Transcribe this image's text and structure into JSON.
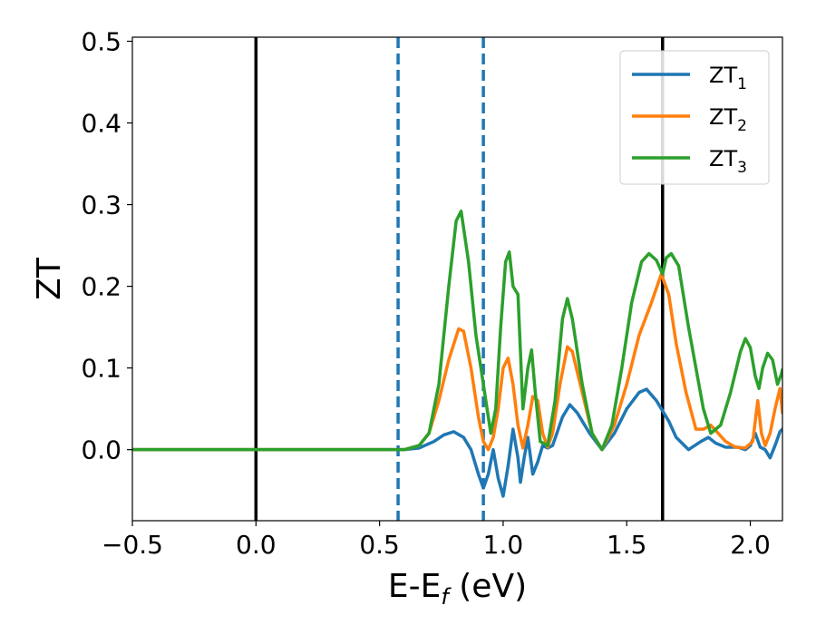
{
  "chart_data": {
    "type": "line",
    "xlabel": "E-E",
    "xlabel_sub": "f",
    "xlabel_unit": " (eV)",
    "ylabel": "ZT",
    "xlim": [
      -0.5,
      2.13
    ],
    "ylim": [
      -0.087,
      0.505
    ],
    "grid": false,
    "legend_position": "top-right",
    "x_ticks": [
      {
        "value": -0.5,
        "label": "−0.5"
      },
      {
        "value": 0.0,
        "label": "0.0"
      },
      {
        "value": 0.5,
        "label": "0.5"
      },
      {
        "value": 1.0,
        "label": "1.0"
      },
      {
        "value": 1.5,
        "label": "1.5"
      },
      {
        "value": 2.0,
        "label": "2.0"
      }
    ],
    "y_ticks": [
      {
        "value": 0.0,
        "label": "0.0"
      },
      {
        "value": 0.1,
        "label": "0.1"
      },
      {
        "value": 0.2,
        "label": "0.2"
      },
      {
        "value": 0.3,
        "label": "0.3"
      },
      {
        "value": 0.4,
        "label": "0.4"
      },
      {
        "value": 0.5,
        "label": "0.5"
      }
    ],
    "vertical_lines": [
      {
        "x": 0.0,
        "color": "#000000",
        "style": "solid"
      },
      {
        "x": 0.575,
        "color": "#1f77b4",
        "style": "dashed"
      },
      {
        "x": 0.92,
        "color": "#1f77b4",
        "style": "dashed"
      },
      {
        "x": 1.645,
        "color": "#000000",
        "style": "solid"
      }
    ],
    "series": [
      {
        "name": "ZT",
        "name_sub": "1",
        "color": "#1f77b4",
        "points": [
          [
            -0.5,
            0
          ],
          [
            0.4,
            0
          ],
          [
            0.6,
            0
          ],
          [
            0.66,
            0.002
          ],
          [
            0.72,
            0.01
          ],
          [
            0.76,
            0.018
          ],
          [
            0.8,
            0.022
          ],
          [
            0.84,
            0.015
          ],
          [
            0.87,
            0.0
          ],
          [
            0.9,
            -0.03
          ],
          [
            0.92,
            -0.047
          ],
          [
            0.94,
            -0.03
          ],
          [
            0.96,
            0.0
          ],
          [
            0.98,
            -0.035
          ],
          [
            1.0,
            -0.057
          ],
          [
            1.02,
            -0.02
          ],
          [
            1.04,
            0.025
          ],
          [
            1.06,
            -0.01
          ],
          [
            1.07,
            -0.04
          ],
          [
            1.085,
            -0.01
          ],
          [
            1.1,
            0.015
          ],
          [
            1.12,
            -0.03
          ],
          [
            1.14,
            -0.015
          ],
          [
            1.16,
            0.005
          ],
          [
            1.18,
            0.002
          ],
          [
            1.2,
            0.005
          ],
          [
            1.24,
            0.04
          ],
          [
            1.27,
            0.055
          ],
          [
            1.3,
            0.045
          ],
          [
            1.35,
            0.02
          ],
          [
            1.4,
            0.0
          ],
          [
            1.45,
            0.02
          ],
          [
            1.5,
            0.05
          ],
          [
            1.55,
            0.07
          ],
          [
            1.58,
            0.074
          ],
          [
            1.62,
            0.06
          ],
          [
            1.67,
            0.035
          ],
          [
            1.7,
            0.015
          ],
          [
            1.75,
            0.0
          ],
          [
            1.8,
            0.01
          ],
          [
            1.83,
            0.015
          ],
          [
            1.86,
            0.008
          ],
          [
            1.9,
            0.003
          ],
          [
            1.95,
            0.003
          ],
          [
            1.98,
            0.0
          ],
          [
            2.0,
            0.005
          ],
          [
            2.02,
            0.02
          ],
          [
            2.04,
            0.003
          ],
          [
            2.06,
            0.0
          ],
          [
            2.08,
            -0.01
          ],
          [
            2.1,
            0.005
          ],
          [
            2.12,
            0.022
          ],
          [
            2.13,
            0.025
          ]
        ]
      },
      {
        "name": "ZT",
        "name_sub": "2",
        "color": "#ff7f0e",
        "points": [
          [
            -0.5,
            0
          ],
          [
            0.4,
            0
          ],
          [
            0.6,
            0
          ],
          [
            0.66,
            0.005
          ],
          [
            0.7,
            0.02
          ],
          [
            0.74,
            0.06
          ],
          [
            0.78,
            0.11
          ],
          [
            0.82,
            0.148
          ],
          [
            0.84,
            0.145
          ],
          [
            0.87,
            0.1
          ],
          [
            0.9,
            0.04
          ],
          [
            0.92,
            0.01
          ],
          [
            0.94,
            0.0
          ],
          [
            0.96,
            0.015
          ],
          [
            0.98,
            0.05
          ],
          [
            1.0,
            0.1
          ],
          [
            1.02,
            0.112
          ],
          [
            1.04,
            0.08
          ],
          [
            1.06,
            0.03
          ],
          [
            1.08,
            0.002
          ],
          [
            1.1,
            0.03
          ],
          [
            1.12,
            0.065
          ],
          [
            1.14,
            0.06
          ],
          [
            1.16,
            0.02
          ],
          [
            1.18,
            0.003
          ],
          [
            1.2,
            0.02
          ],
          [
            1.23,
            0.08
          ],
          [
            1.26,
            0.126
          ],
          [
            1.28,
            0.12
          ],
          [
            1.32,
            0.07
          ],
          [
            1.36,
            0.02
          ],
          [
            1.4,
            0.0
          ],
          [
            1.45,
            0.03
          ],
          [
            1.5,
            0.08
          ],
          [
            1.55,
            0.14
          ],
          [
            1.6,
            0.18
          ],
          [
            1.64,
            0.215
          ],
          [
            1.67,
            0.19
          ],
          [
            1.7,
            0.13
          ],
          [
            1.74,
            0.07
          ],
          [
            1.78,
            0.025
          ],
          [
            1.81,
            0.025
          ],
          [
            1.84,
            0.03
          ],
          [
            1.87,
            0.02
          ],
          [
            1.9,
            0.01
          ],
          [
            1.94,
            0.003
          ],
          [
            1.98,
            0.002
          ],
          [
            2.01,
            0.01
          ],
          [
            2.03,
            0.06
          ],
          [
            2.045,
            0.02
          ],
          [
            2.06,
            0.005
          ],
          [
            2.08,
            0.02
          ],
          [
            2.1,
            0.05
          ],
          [
            2.12,
            0.075
          ],
          [
            2.13,
            0.045
          ]
        ]
      },
      {
        "name": "ZT",
        "name_sub": "3",
        "color": "#2ca02c",
        "points": [
          [
            -0.5,
            0
          ],
          [
            0.4,
            0
          ],
          [
            0.6,
            0
          ],
          [
            0.66,
            0.005
          ],
          [
            0.7,
            0.02
          ],
          [
            0.74,
            0.08
          ],
          [
            0.78,
            0.2
          ],
          [
            0.81,
            0.28
          ],
          [
            0.83,
            0.292
          ],
          [
            0.86,
            0.23
          ],
          [
            0.89,
            0.14
          ],
          [
            0.92,
            0.08
          ],
          [
            0.95,
            0.02
          ],
          [
            0.97,
            0.05
          ],
          [
            0.99,
            0.15
          ],
          [
            1.01,
            0.23
          ],
          [
            1.025,
            0.242
          ],
          [
            1.04,
            0.2
          ],
          [
            1.06,
            0.19
          ],
          [
            1.08,
            0.05
          ],
          [
            1.1,
            0.1
          ],
          [
            1.115,
            0.122
          ],
          [
            1.13,
            0.07
          ],
          [
            1.15,
            0.01
          ],
          [
            1.18,
            0.005
          ],
          [
            1.21,
            0.06
          ],
          [
            1.24,
            0.16
          ],
          [
            1.26,
            0.185
          ],
          [
            1.28,
            0.16
          ],
          [
            1.32,
            0.08
          ],
          [
            1.36,
            0.02
          ],
          [
            1.4,
            0.0
          ],
          [
            1.44,
            0.03
          ],
          [
            1.48,
            0.1
          ],
          [
            1.52,
            0.18
          ],
          [
            1.56,
            0.23
          ],
          [
            1.59,
            0.24
          ],
          [
            1.62,
            0.232
          ],
          [
            1.645,
            0.215
          ],
          [
            1.66,
            0.235
          ],
          [
            1.68,
            0.24
          ],
          [
            1.71,
            0.225
          ],
          [
            1.75,
            0.15
          ],
          [
            1.78,
            0.1
          ],
          [
            1.81,
            0.05
          ],
          [
            1.84,
            0.02
          ],
          [
            1.88,
            0.03
          ],
          [
            1.92,
            0.07
          ],
          [
            1.96,
            0.12
          ],
          [
            1.98,
            0.136
          ],
          [
            2.0,
            0.125
          ],
          [
            2.02,
            0.09
          ],
          [
            2.035,
            0.075
          ],
          [
            2.05,
            0.1
          ],
          [
            2.07,
            0.118
          ],
          [
            2.09,
            0.11
          ],
          [
            2.11,
            0.08
          ],
          [
            2.125,
            0.092
          ],
          [
            2.13,
            0.098
          ]
        ]
      }
    ]
  }
}
